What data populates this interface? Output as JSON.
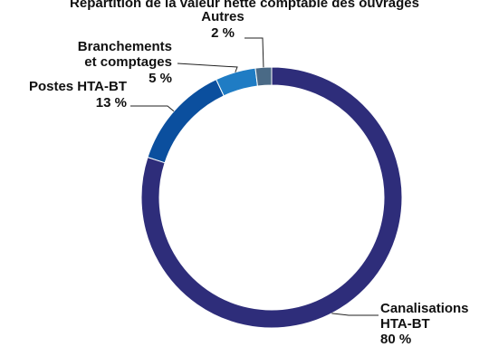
{
  "chart_data": {
    "type": "pie",
    "title": "Répartition de la valeur nette comptable des ouvrages",
    "categories": [
      "Canalisations HTA-BT",
      "Postes HTA-BT",
      "Branchements et comptages",
      "Autres"
    ],
    "values": [
      80,
      13,
      5,
      2
    ],
    "value_labels": [
      "80 %",
      "13 %",
      "5 %",
      "2 %"
    ],
    "label_lines": [
      [
        "Canalisations",
        "HTA-BT"
      ],
      [
        "Postes HTA-BT"
      ],
      [
        "Branchements",
        "et comptages"
      ],
      [
        "Autres"
      ]
    ],
    "colors": [
      "#2e2d7a",
      "#0b4f9e",
      "#1f7cc4",
      "#4a6a86"
    ],
    "donut": true,
    "legend": "none"
  }
}
